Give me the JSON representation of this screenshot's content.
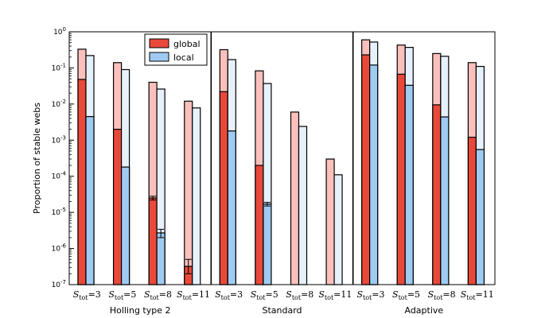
{
  "chart_data": {
    "type": "bar",
    "yscale": "log",
    "ylim": [
      1e-07,
      1
    ],
    "ylabel": "Proportion of stable webs",
    "ytick_labels": [
      {
        "base": "10",
        "exp": "-7"
      },
      {
        "base": "10",
        "exp": "-6"
      },
      {
        "base": "10",
        "exp": "-5"
      },
      {
        "base": "10",
        "exp": "-4"
      },
      {
        "base": "10",
        "exp": "-3"
      },
      {
        "base": "10",
        "exp": "-2"
      },
      {
        "base": "10",
        "exp": "-1"
      },
      {
        "base": "10",
        "exp": "0"
      }
    ],
    "category_label": {
      "var": "S",
      "sub": "tot",
      "values": [
        "=3",
        "=5",
        "=8",
        "=11"
      ]
    },
    "legend": {
      "position": "top",
      "entries": [
        {
          "name": "global",
          "color": "#e8493a"
        },
        {
          "name": "local",
          "color": "#9fcbf2"
        }
      ]
    },
    "colors": {
      "global_dark": "#e8493a",
      "global_light": "#fbc0bc",
      "local_dark": "#9fcbf2",
      "local_light": "#e6f1fc"
    },
    "panels": [
      {
        "name": "Holling type 2",
        "categories": [
          {
            "global_light": 0.33,
            "global_dark": 0.048,
            "local_light": 0.22,
            "local_dark": 0.0045
          },
          {
            "global_light": 0.14,
            "global_dark": 0.002,
            "local_light": 0.09,
            "local_dark": 0.00018
          },
          {
            "global_light": 0.04,
            "global_dark": 2.5e-05,
            "local_light": 0.026,
            "local_dark": 2.7e-06,
            "err_gd": [
              2.2e-05,
              2.8e-05
            ],
            "err_ld": [
              2e-06,
              3.4e-06
            ]
          },
          {
            "global_light": 0.012,
            "global_dark": 3.2e-07,
            "local_light": 0.0078,
            "local_dark": 1e-07,
            "err_gd": [
              2e-07,
              5e-07
            ]
          }
        ]
      },
      {
        "name": "Standard",
        "categories": [
          {
            "global_light": 0.32,
            "global_dark": 0.022,
            "local_light": 0.17,
            "local_dark": 0.0018
          },
          {
            "global_light": 0.083,
            "global_dark": 0.0002,
            "local_light": 0.037,
            "local_dark": 1.7e-05,
            "err_ld": [
              1.5e-05,
              1.9e-05
            ]
          },
          {
            "global_light": 0.006,
            "global_dark": 1e-07,
            "local_light": 0.0024,
            "local_dark": 1e-07
          },
          {
            "global_light": 0.0003,
            "global_dark": 1e-07,
            "local_light": 0.00011,
            "local_dark": 1e-07
          }
        ]
      },
      {
        "name": "Adaptive",
        "categories": [
          {
            "global_light": 0.6,
            "global_dark": 0.23,
            "local_light": 0.52,
            "local_dark": 0.12
          },
          {
            "global_light": 0.43,
            "global_dark": 0.067,
            "local_light": 0.37,
            "local_dark": 0.033
          },
          {
            "global_light": 0.25,
            "global_dark": 0.0095,
            "local_light": 0.21,
            "local_dark": 0.0044
          },
          {
            "global_light": 0.14,
            "global_dark": 0.0012,
            "local_light": 0.11,
            "local_dark": 0.00055
          }
        ]
      }
    ]
  }
}
